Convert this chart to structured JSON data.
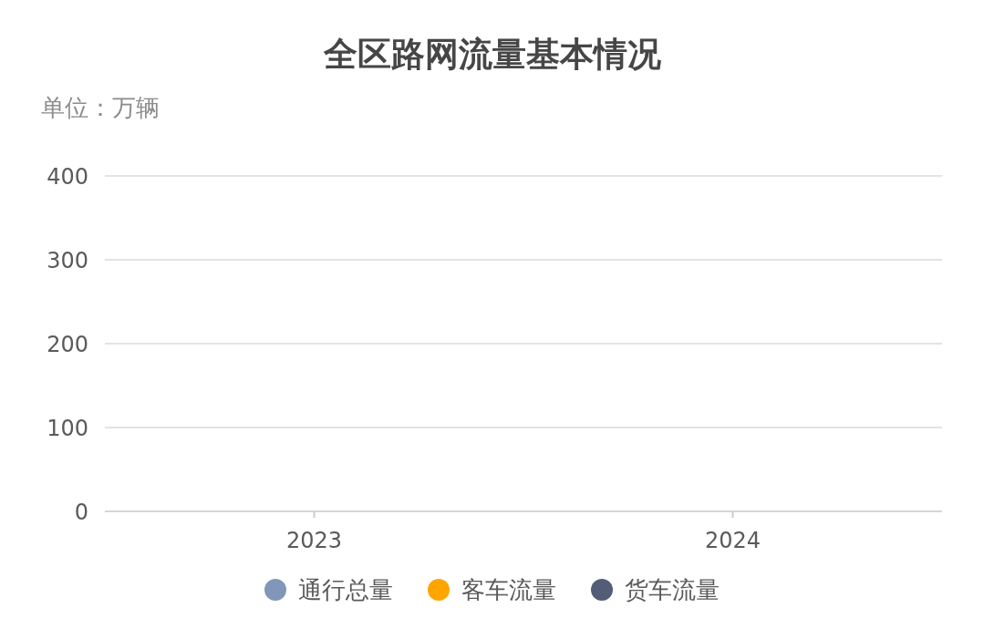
{
  "chart_data": {
    "type": "bar",
    "title": "全区路网流量基本情况",
    "subtitle": "单位：万辆",
    "categories": [
      "2023",
      "2024"
    ],
    "series": [
      {
        "name": "通行总量",
        "color": "#8197b9",
        "values": [
          0,
          0
        ]
      },
      {
        "name": "客车流量",
        "color": "#ffa500",
        "values": [
          0,
          0
        ]
      },
      {
        "name": "货车流量",
        "color": "#535d78",
        "values": [
          0,
          0
        ]
      }
    ],
    "ylim": [
      0,
      400
    ],
    "yticks": [
      0,
      100,
      200,
      300,
      400
    ],
    "grid": "y",
    "legend": "bottom"
  }
}
